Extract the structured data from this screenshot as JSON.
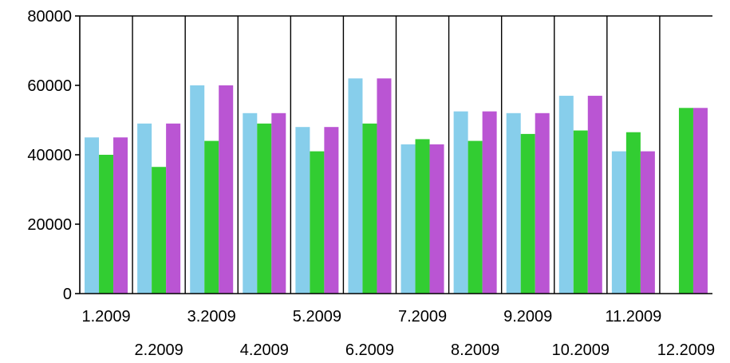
{
  "chart_data": {
    "type": "bar",
    "title": "",
    "xlabel": "",
    "ylabel": "",
    "ylim": [
      0,
      80000
    ],
    "yticks": [
      0,
      20000,
      40000,
      60000,
      80000
    ],
    "ytick_labels": [
      "0",
      "20000",
      "40000",
      "60000",
      "80000"
    ],
    "grid": "vertical",
    "legend": "none",
    "categories": [
      "1.2009",
      "2.2009",
      "3.2009",
      "4.2009",
      "5.2009",
      "6.2009",
      "7.2009",
      "8.2009",
      "9.2009",
      "10.2009",
      "11.2009",
      "12.2009"
    ],
    "series": [
      {
        "color": "#87ceeb",
        "values": [
          45000,
          49000,
          60000,
          52000,
          48000,
          62000,
          43000,
          52500,
          52000,
          57000,
          41000,
          null
        ]
      },
      {
        "color": "#32cd32",
        "values": [
          40000,
          36500,
          44000,
          49000,
          41000,
          49000,
          44500,
          44000,
          46000,
          47000,
          46500,
          53500
        ]
      },
      {
        "color": "#ba55d3",
        "values": [
          45000,
          49000,
          60000,
          52000,
          48000,
          62000,
          43000,
          52500,
          52000,
          57000,
          41000,
          53500
        ]
      }
    ]
  }
}
